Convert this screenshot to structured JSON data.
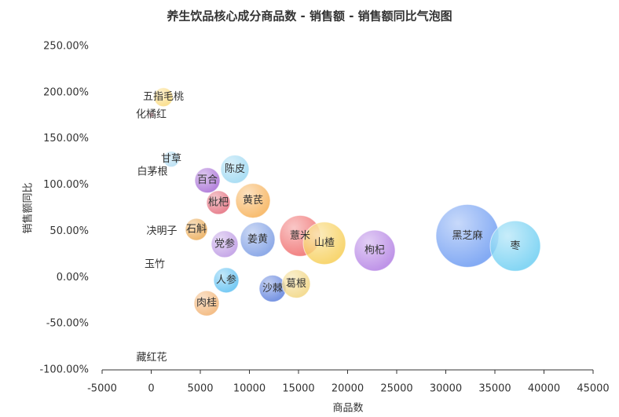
{
  "chart_data": {
    "type": "bubble",
    "title": "养生饮品核心成分商品数 - 销售额 - 销售额同比气泡图",
    "x_label": "商品数",
    "y_label": "销售额同比",
    "labels": [
      "五指毛桃",
      "化橘红",
      "甘草",
      "白茅根",
      "陈皮",
      "百合",
      "黄芪",
      "枇杷",
      "决明子",
      "石斛",
      "党参",
      "姜黄",
      "薏米",
      "山楂",
      "枸杞",
      "黑芝麻",
      "枣",
      "玉竹",
      "人参",
      "沙棘",
      "葛根",
      "肉桂",
      "藏红花"
    ],
    "x": [
      1240,
      0,
      2040,
      120,
      8520,
      5720,
      10360,
      6840,
      1080,
      4600,
      7480,
      10840,
      15160,
      17640,
      22760,
      32200,
      37080,
      360,
      7640,
      12360,
      14760,
      5640,
      40
    ],
    "values": [
      195,
      176,
      128,
      114,
      117,
      105,
      83,
      81,
      50,
      52,
      36,
      41,
      45,
      37,
      29,
      45,
      34,
      14,
      -3,
      -12,
      -7,
      -28,
      -87
    ],
    "sizes": [
      144,
      9,
      100,
      9,
      324,
      256,
      484,
      225,
      9,
      196,
      289,
      484,
      676,
      729,
      676,
      1600,
      1024,
      9,
      256,
      289,
      324,
      256,
      9
    ],
    "colors": [
      "#f9d56e",
      "#f4a0b0",
      "#a8d8f0",
      "#dddddd",
      "#8fd3f0",
      "#9b59d0",
      "#f5a742",
      "#e05a6b",
      "#cccccc",
      "#e8a040",
      "#b48ce0",
      "#6a8fe0",
      "#ee5a5a",
      "#f5c842",
      "#a970e0",
      "#5b8ff0",
      "#5cc8f0",
      "#eeeeee",
      "#4ab8f0",
      "#4a70d8",
      "#f0d070",
      "#f0a860",
      "#dddddd"
    ],
    "xlim": [
      -5000,
      45000
    ],
    "xticks": [
      -5000,
      0,
      5000,
      10000,
      15000,
      20000,
      25000,
      30000,
      35000,
      40000,
      45000
    ],
    "ylim": [
      -100,
      250
    ],
    "yticks": [
      {
        "value": -100,
        "label": "-100.00%"
      },
      {
        "value": -50,
        "label": "-50.00%"
      },
      {
        "value": 0,
        "label": "0.00%"
      },
      {
        "value": 50,
        "label": "50.00%"
      },
      {
        "value": 100,
        "label": "100.00%"
      },
      {
        "value": 150,
        "label": "150.00%"
      },
      {
        "value": 200,
        "label": "200.00%"
      },
      {
        "value": 250,
        "label": "250.00%"
      }
    ]
  }
}
